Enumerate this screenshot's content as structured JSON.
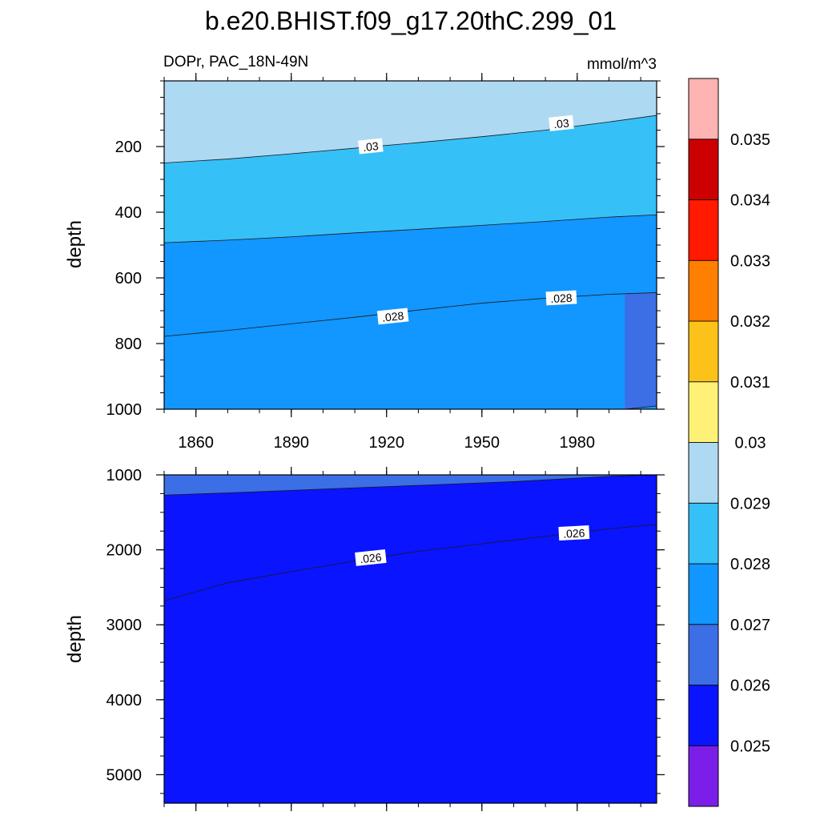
{
  "title": "b.e20.BHIST.f09_g17.20thC.299_01",
  "subtitle_left": "DOPr, PAC_18N-49N",
  "units": "mmol/m^3",
  "chart_data": {
    "type": "contour",
    "panels": [
      {
        "ylabel": "depth",
        "xrange": [
          1850,
          2005
        ],
        "ylim": [
          0,
          1000
        ],
        "y_reversed": true,
        "yticks": [
          200,
          400,
          600,
          800,
          1000
        ],
        "xticks": [
          1860,
          1890,
          1920,
          1950,
          1980
        ],
        "top_axis": 0,
        "background_color": "#1296ff",
        "bands": [
          {
            "color": "#fff176",
            "lower_boundary": [
              [
                1850,
                0
              ],
              [
                2005,
                0
              ]
            ]
          },
          {
            "color": "#aed9f2",
            "lower_boundary": [
              [
                1850,
                250
              ],
              [
                1870,
                238
              ],
              [
                1890,
                222
              ],
              [
                1910,
                205
              ],
              [
                1930,
                188
              ],
              [
                1950,
                170
              ],
              [
                1970,
                150
              ],
              [
                1990,
                125
              ],
              [
                2005,
                105
              ]
            ]
          },
          {
            "color": "#36c0f8",
            "lower_boundary": [
              [
                1850,
                493
              ],
              [
                1870,
                485
              ],
              [
                1890,
                475
              ],
              [
                1910,
                463
              ],
              [
                1930,
                452
              ],
              [
                1950,
                440
              ],
              [
                1970,
                428
              ],
              [
                1990,
                415
              ],
              [
                2005,
                408
              ]
            ]
          },
          {
            "color": "#1296ff",
            "lower_boundary": [
              [
                1850,
                778
              ],
              [
                1870,
                760
              ],
              [
                1890,
                740
              ],
              [
                1910,
                720
              ],
              [
                1930,
                698
              ],
              [
                1950,
                677
              ],
              [
                1970,
                662
              ],
              [
                1990,
                650
              ],
              [
                2005,
                645
              ]
            ]
          },
          {
            "color": "#3c6ee6",
            "lower_boundary": [
              [
                1995,
                1000
              ],
              [
                2000,
                995
              ],
              [
                2005,
                990
              ]
            ]
          }
        ],
        "contour_labels": [
          {
            "text": ".03",
            "x": 1915,
            "y": 200,
            "angle": -6
          },
          {
            "text": ".03",
            "x": 1975,
            "y": 130,
            "angle": -6
          },
          {
            "text": ".028",
            "x": 1922,
            "y": 718,
            "angle": -6
          },
          {
            "text": ".028",
            "x": 1975,
            "y": 662,
            "angle": -3
          }
        ]
      },
      {
        "ylabel": "depth",
        "xrange": [
          1850,
          2005
        ],
        "ylim": [
          1000,
          5380
        ],
        "y_reversed": true,
        "yticks": [
          1000,
          2000,
          3000,
          4000,
          5000
        ],
        "xticks": [],
        "top_axis": 1000,
        "background_color": "#0a14ff",
        "bands": [
          {
            "color": "#1296ff",
            "lower_boundary": [
              [
                1850,
                1000
              ],
              [
                2005,
                1000
              ]
            ]
          },
          {
            "color": "#3c6ee6",
            "lower_boundary": [
              [
                1850,
                1270
              ],
              [
                1870,
                1240
              ],
              [
                1900,
                1190
              ],
              [
                1930,
                1140
              ],
              [
                1960,
                1090
              ],
              [
                1990,
                1020
              ],
              [
                2005,
                1000
              ]
            ]
          },
          {
            "color": "#0a14ff",
            "lower_boundary": [
              [
                1850,
                2680
              ],
              [
                1860,
                2560
              ],
              [
                1870,
                2440
              ],
              [
                1890,
                2290
              ],
              [
                1910,
                2150
              ],
              [
                1930,
                2020
              ],
              [
                1950,
                1920
              ],
              [
                1970,
                1820
              ],
              [
                1990,
                1720
              ],
              [
                2005,
                1660
              ]
            ]
          }
        ],
        "contour_labels": [
          {
            "text": ".026",
            "x": 1915,
            "y": 2110,
            "angle": -6
          },
          {
            "text": ".026",
            "x": 1979,
            "y": 1780,
            "angle": -3
          }
        ]
      }
    ],
    "colorbar": {
      "colors": [
        "#7b1fe8",
        "#0a14ff",
        "#3c6ee6",
        "#1296ff",
        "#36c0f8",
        "#aed9f2",
        "#fff176",
        "#fdc21a",
        "#ff7f00",
        "#ff1a00",
        "#cc0000",
        "#ffb3b3"
      ],
      "labels": [
        "0.025",
        "0.026",
        "0.027",
        "0.028",
        "0.029",
        "0.03",
        "0.031",
        "0.032",
        "0.033",
        "0.034",
        "0.035"
      ]
    }
  }
}
